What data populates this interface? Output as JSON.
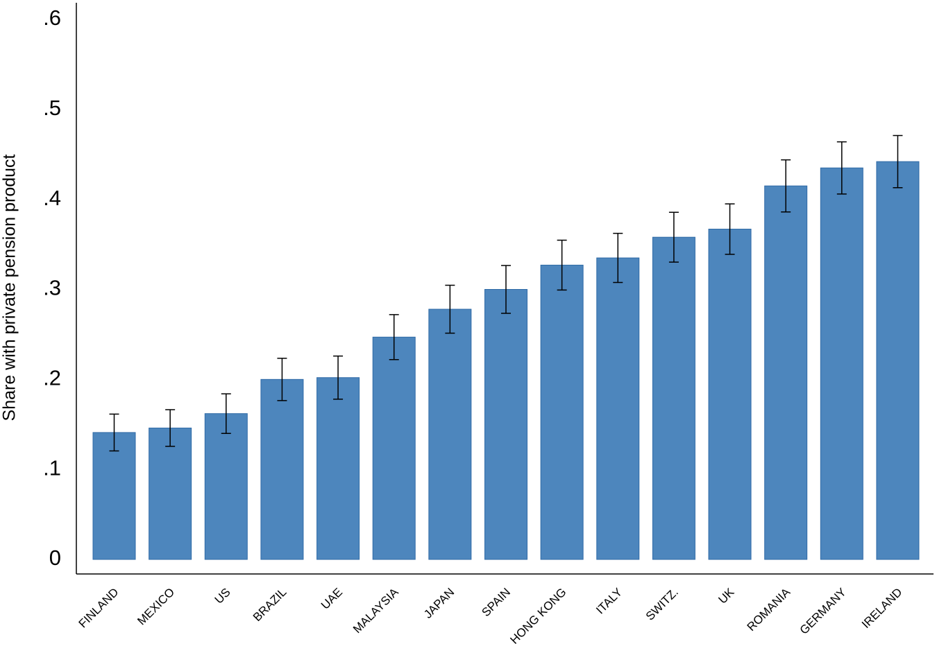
{
  "chart_data": {
    "type": "bar",
    "y_label": "Share with private pension product",
    "categories": [
      "FINLAND",
      "MEXICO",
      "US",
      "BRAZIL",
      "UAE",
      "MALAYSIA",
      "JAPAN",
      "SPAIN",
      "HONG KONG",
      "ITALY",
      "SWITZ.",
      "UK",
      "ROMANIA",
      "GERMANY",
      "IRELAND"
    ],
    "values": [
      0.141,
      0.146,
      0.162,
      0.2,
      0.202,
      0.247,
      0.278,
      0.3,
      0.327,
      0.335,
      0.358,
      0.367,
      0.415,
      0.435,
      0.442
    ],
    "errors": [
      0.0205,
      0.0204,
      0.022,
      0.0235,
      0.024,
      0.025,
      0.0266,
      0.0266,
      0.0277,
      0.0273,
      0.0277,
      0.028,
      0.0289,
      0.029,
      0.029
    ],
    "color": "#4d86bd",
    "ylim": [
      0,
      0.6
    ],
    "yticks": [
      0,
      {
        "value": 0.1,
        "label": ".1"
      },
      {
        "value": 0.2,
        "label": ".2"
      },
      {
        "value": 0.3,
        "label": ".3"
      },
      {
        "value": 0.4,
        "label": ".4"
      },
      {
        "value": 0.5,
        "label": ".5"
      },
      {
        "value": 0.6,
        "label": ".6"
      }
    ]
  }
}
